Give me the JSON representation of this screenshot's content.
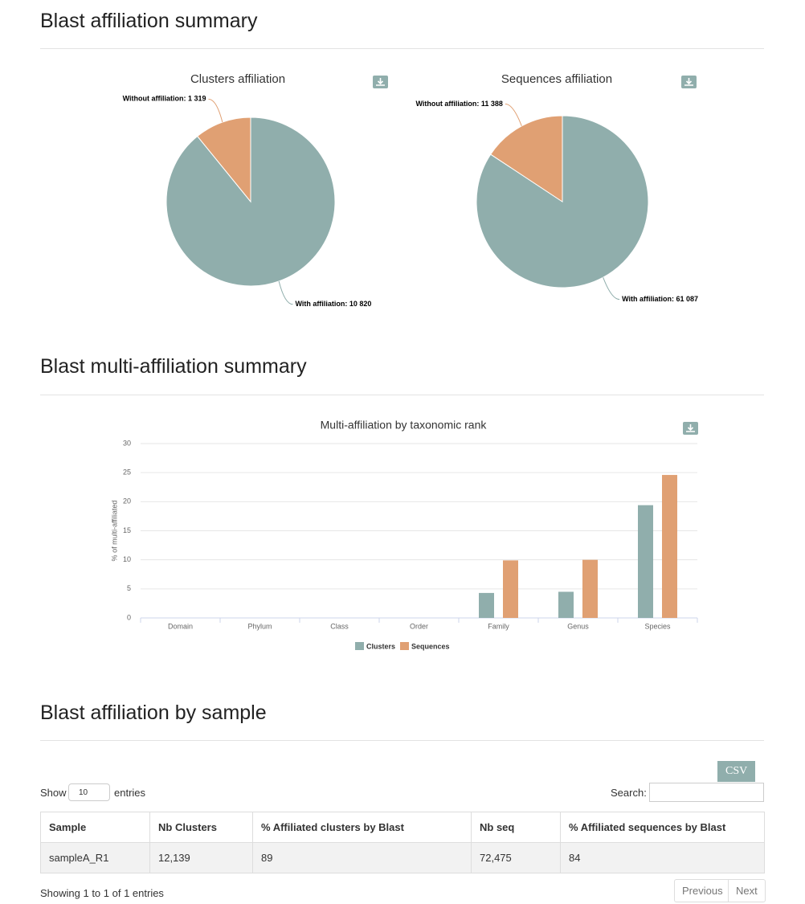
{
  "sections": [
    {
      "title": "Blast affiliation summary"
    },
    {
      "title": "Blast multi-affiliation summary"
    },
    {
      "title": "Blast affiliation by sample"
    }
  ],
  "chart_data": [
    {
      "type": "pie",
      "title": "Clusters affiliation",
      "values": [
        10820,
        1319
      ],
      "value_labels": [
        "With affiliation: 10 820",
        "Without affiliation: 1 319"
      ],
      "colors": [
        "#90aeac",
        "#e0a073"
      ]
    },
    {
      "type": "pie",
      "title": "Sequences affiliation",
      "values": [
        61087,
        11388
      ],
      "value_labels": [
        "With affiliation: 61 087",
        "Without affiliation: 11 388"
      ],
      "colors": [
        "#90aeac",
        "#e0a073"
      ]
    },
    {
      "type": "bar",
      "title": "Multi-affiliation by taxonomic rank",
      "ylabel": "% of multi-affiliated",
      "categories": [
        "Domain",
        "Phylum",
        "Class",
        "Order",
        "Family",
        "Genus",
        "Species"
      ],
      "series": [
        {
          "name": "Clusters",
          "color": "#90aeac",
          "values": [
            0,
            0,
            0,
            0,
            4.3,
            4.5,
            19.4
          ]
        },
        {
          "name": "Sequences",
          "color": "#e0a073",
          "values": [
            0,
            0,
            0,
            0,
            9.9,
            10,
            24.6
          ]
        }
      ],
      "ylim": [
        0,
        30
      ],
      "yticks": [
        0,
        5,
        10,
        15,
        20,
        25,
        30
      ],
      "grid": true,
      "legend": "bottom"
    }
  ],
  "table": {
    "csv_button": "CSV",
    "length_label_before": "Show",
    "length_value": "10",
    "length_label_after": "entries",
    "search_label": "Search:",
    "columns": [
      "Sample",
      "Nb Clusters",
      "% Affiliated clusters by Blast",
      "Nb seq",
      "% Affiliated sequences by Blast"
    ],
    "rows": [
      [
        "sampleA_R1",
        "12,139",
        89,
        "72,475",
        84
      ]
    ],
    "info": "Showing 1 to 1 of 1 entries",
    "pagination": [
      "Previous",
      "Next"
    ]
  }
}
